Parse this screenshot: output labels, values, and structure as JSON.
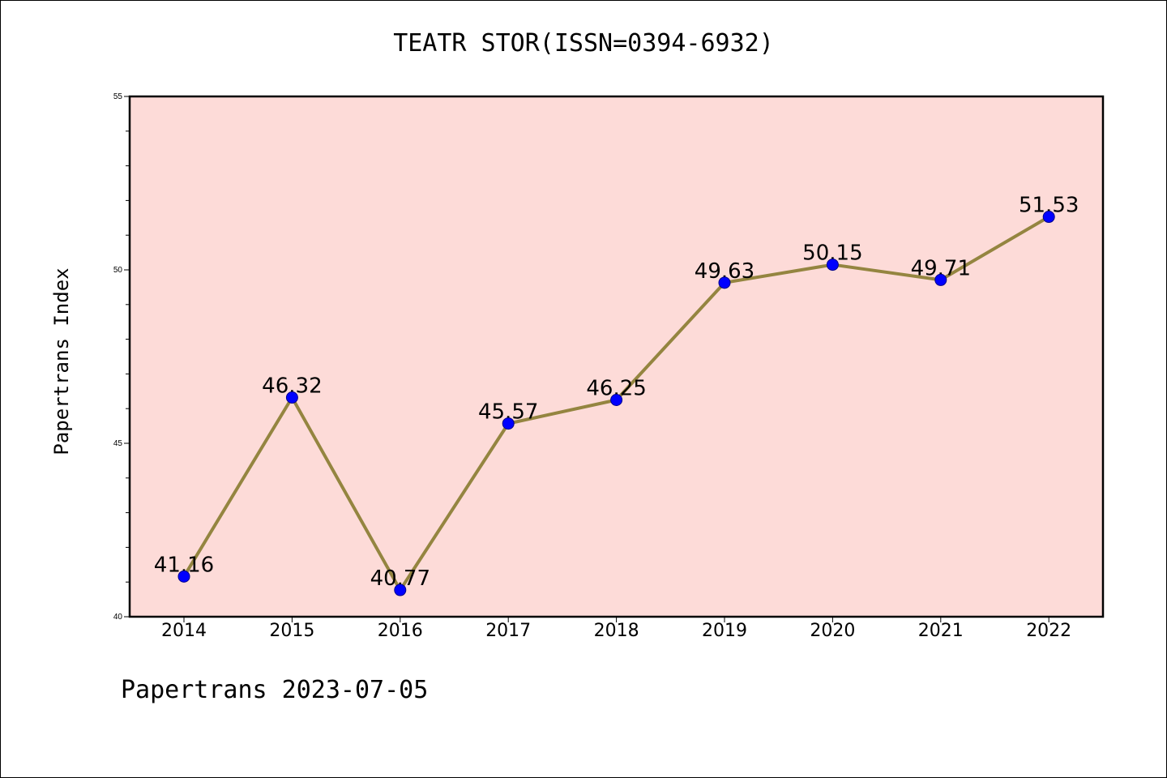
{
  "chart_data": {
    "type": "line",
    "title": "TEATR STOR(ISSN=0394-6932)",
    "xlabel": "",
    "ylabel": "Papertrans Index",
    "categories": [
      "2014",
      "2015",
      "2016",
      "2017",
      "2018",
      "2019",
      "2020",
      "2021",
      "2022"
    ],
    "series": [
      {
        "values": [
          41.16,
          46.32,
          40.77,
          45.57,
          46.25,
          49.63,
          50.15,
          49.71,
          51.53
        ],
        "labels": [
          "41.16",
          "46.32",
          "40.77",
          "45.57",
          "46.25",
          "49.63",
          "50.15",
          "49.71",
          "51.53"
        ]
      }
    ],
    "ylim": [
      40,
      55
    ],
    "yticks": [
      "40",
      "45",
      "50",
      "55"
    ],
    "grid": false,
    "legend": "none",
    "colors": {
      "plot_background": "#fddbd8",
      "line": "#948540",
      "marker_fill": "#0000ff",
      "marker_edge": "#00008b",
      "text": "#000000"
    }
  },
  "footer": {
    "text": "Papertrans 2023-07-05"
  }
}
